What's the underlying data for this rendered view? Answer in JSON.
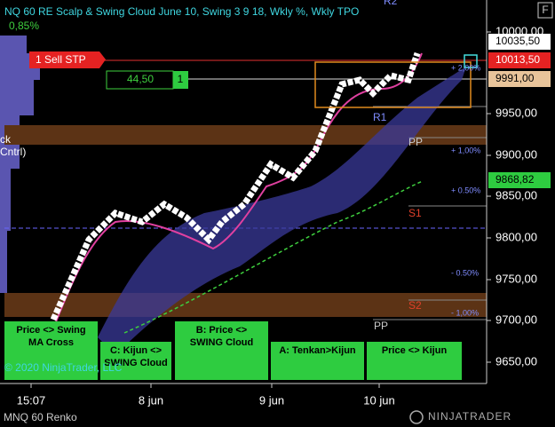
{
  "header": {
    "title": "NQ 60 RE Scalp & Swing Cloud June 10, Swing  3 9 18, Wkly %, Wkly TPO",
    "change": "0,85%"
  },
  "orders": {
    "sell": "1 Sell STP",
    "distance": "44,50",
    "qty": "1"
  },
  "price_axis": {
    "ticks": [
      "10000,00",
      "9950,00",
      "9900,00",
      "9850,00",
      "9800,00",
      "9750,00",
      "9700,00",
      "9650,00"
    ],
    "markers": {
      "high": "10035,50",
      "order": "10013,50",
      "last": "9991,00",
      "ma": "9868,82"
    }
  },
  "time_axis": [
    "15:07",
    "8 jun",
    "9 jun",
    "10 jun"
  ],
  "pivots": {
    "r2": "R2",
    "r1": "R1",
    "pp": "PP",
    "s1": "S1",
    "s2": "S2",
    "pp_prev": "PP"
  },
  "percent_levels": [
    "+ 2,00%",
    "+ 1,00%",
    "+ 0.50%",
    "- 0.50%",
    "- 1,00%"
  ],
  "left_labels": [
    "ck",
    "Cntrl)"
  ],
  "buttons": [
    "Price <> Swing MA Cross",
    "C: Kijun <> SWING Cloud",
    "B: Price <> SWING Cloud",
    "A: Tenkan>Kijun",
    "Price <> Kijun"
  ],
  "footer": {
    "copyright": "© 2020 NinjaTrader, LLC",
    "instrument": "MNQ 60 Renko",
    "logo": "NINJATRADER",
    "f_button": "F"
  }
}
